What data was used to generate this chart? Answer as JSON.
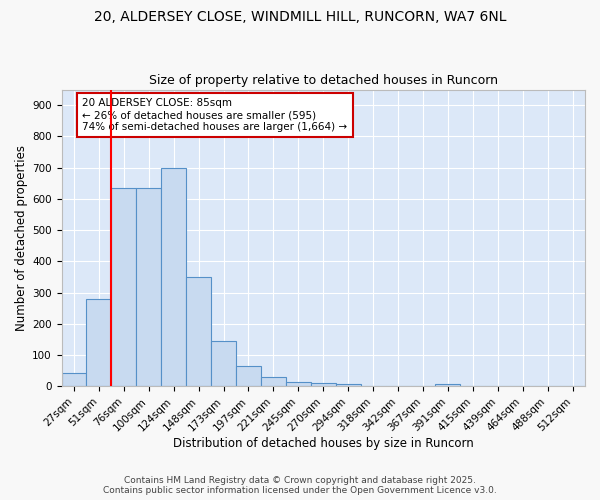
{
  "title1": "20, ALDERSEY CLOSE, WINDMILL HILL, RUNCORN, WA7 6NL",
  "title2": "Size of property relative to detached houses in Runcorn",
  "xlabel": "Distribution of detached houses by size in Runcorn",
  "ylabel": "Number of detached properties",
  "bar_color": "#c8daf0",
  "bar_edge_color": "#5590c8",
  "background_color": "#dce8f8",
  "grid_color": "#ffffff",
  "fig_background": "#f8f8f8",
  "categories": [
    "27sqm",
    "51sqm",
    "76sqm",
    "100sqm",
    "124sqm",
    "148sqm",
    "173sqm",
    "197sqm",
    "221sqm",
    "245sqm",
    "270sqm",
    "294sqm",
    "318sqm",
    "342sqm",
    "367sqm",
    "391sqm",
    "415sqm",
    "439sqm",
    "464sqm",
    "488sqm",
    "512sqm"
  ],
  "values": [
    42,
    280,
    635,
    635,
    700,
    350,
    145,
    65,
    30,
    14,
    11,
    6,
    0,
    0,
    0,
    8,
    0,
    0,
    0,
    0,
    0
  ],
  "ylim": [
    0,
    950
  ],
  "yticks": [
    0,
    100,
    200,
    300,
    400,
    500,
    600,
    700,
    800,
    900
  ],
  "red_line_x": 1.5,
  "annotation_text": "20 ALDERSEY CLOSE: 85sqm\n← 26% of detached houses are smaller (595)\n74% of semi-detached houses are larger (1,664) →",
  "annotation_box_color": "#ffffff",
  "annotation_box_edge": "#cc0000",
  "footer": "Contains HM Land Registry data © Crown copyright and database right 2025.\nContains public sector information licensed under the Open Government Licence v3.0.",
  "title_fontsize": 10,
  "subtitle_fontsize": 9,
  "axis_label_fontsize": 8.5,
  "tick_fontsize": 7.5,
  "annotation_fontsize": 7.5,
  "footer_fontsize": 6.5
}
